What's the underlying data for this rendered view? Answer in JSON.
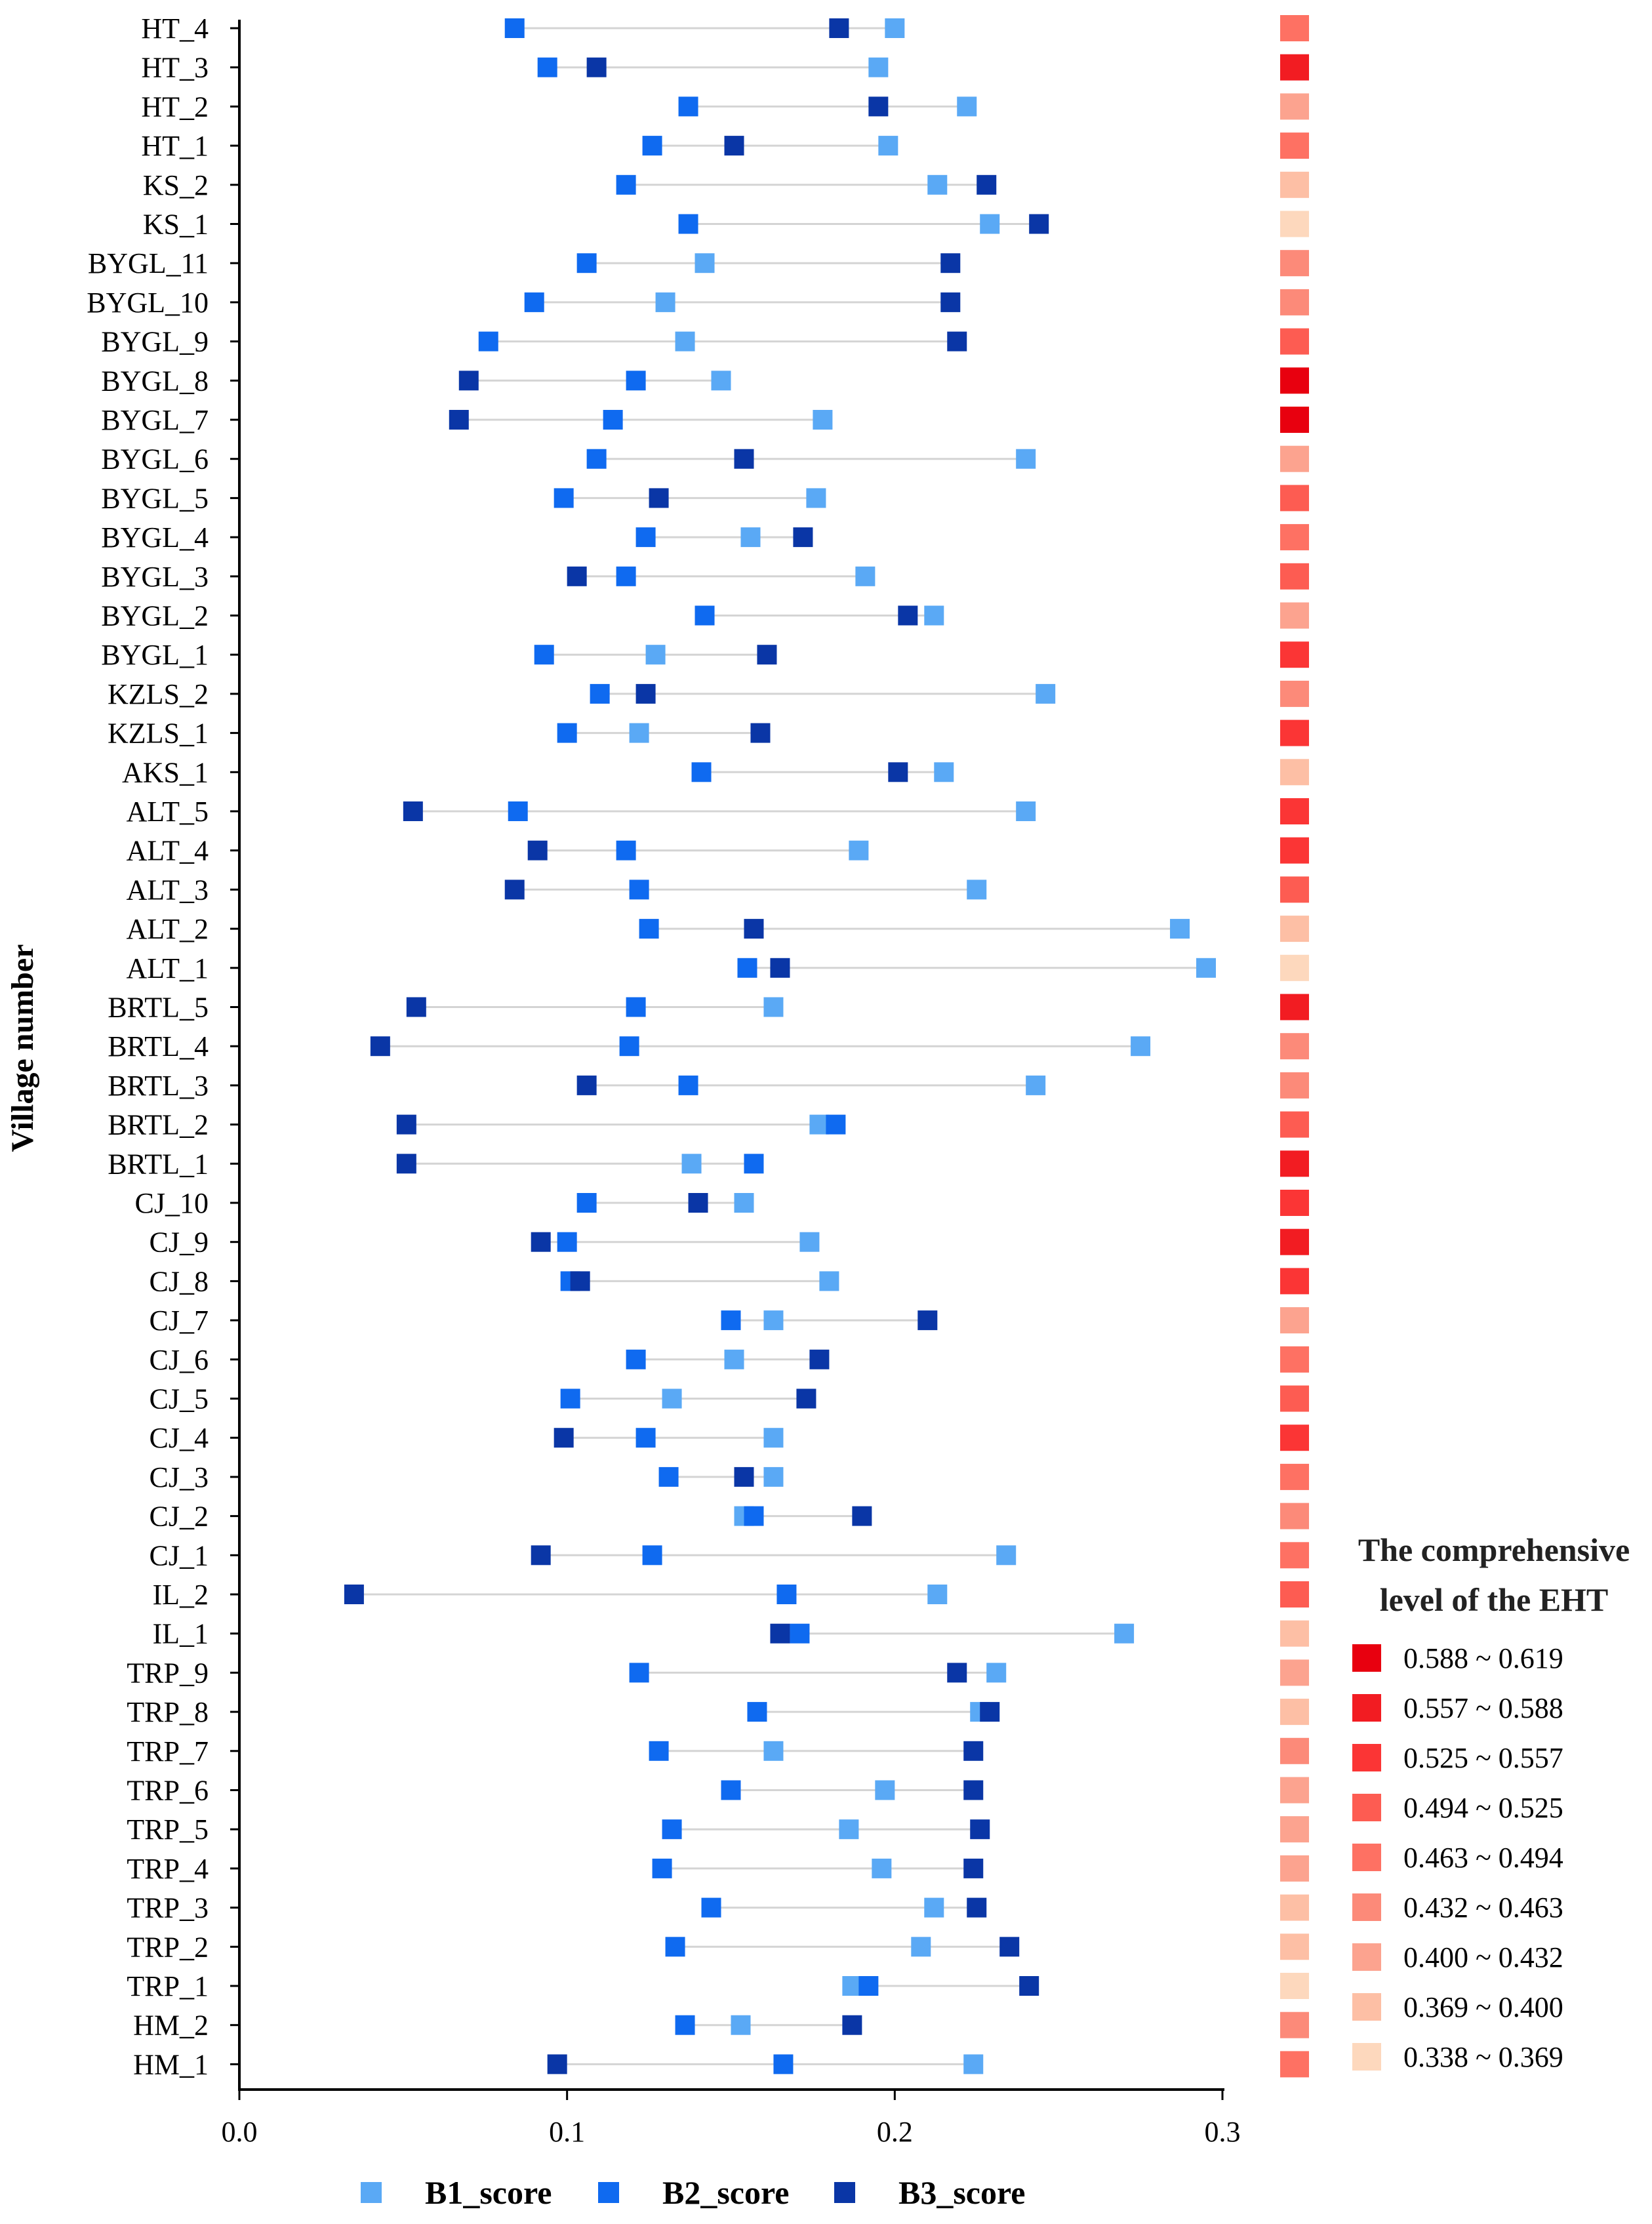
{
  "chart_data": {
    "type": "scatter",
    "subtype": "dumbbell",
    "title": "",
    "ylabel": "Village number",
    "xlabel": "",
    "xlim": [
      0.0,
      0.3
    ],
    "xticks": [
      "0.0",
      "0.1",
      "0.2",
      "0.3"
    ],
    "grid": false,
    "legend_position": "bottom",
    "categories": [
      "HT_4",
      "HT_3",
      "HT_2",
      "HT_1",
      "KS_2",
      "KS_1",
      "BYGL_11",
      "BYGL_10",
      "BYGL_9",
      "BYGL_8",
      "BYGL_7",
      "BYGL_6",
      "BYGL_5",
      "BYGL_4",
      "BYGL_3",
      "BYGL_2",
      "BYGL_1",
      "KZLS_2",
      "KZLS_1",
      "AKS_1",
      "ALT_5",
      "ALT_4",
      "ALT_3",
      "ALT_2",
      "ALT_1",
      "BRTL_5",
      "BRTL_4",
      "BRTL_3",
      "BRTL_2",
      "BRTL_1",
      "CJ_10",
      "CJ_9",
      "CJ_8",
      "CJ_7",
      "CJ_6",
      "CJ_5",
      "CJ_4",
      "CJ_3",
      "CJ_2",
      "CJ_1",
      "IL_2",
      "IL_1",
      "TRP_9",
      "TRP_8",
      "TRP_7",
      "TRP_6",
      "TRP_5",
      "TRP_4",
      "TRP_3",
      "TRP_2",
      "TRP_1",
      "HM_2",
      "HM_1"
    ],
    "series": [
      {
        "name": "B1_score",
        "color": "#5aa9f5",
        "values": [
          0.2,
          0.195,
          0.222,
          0.198,
          0.213,
          0.229,
          0.142,
          0.13,
          0.136,
          0.147,
          0.178,
          0.24,
          0.176,
          0.156,
          0.191,
          0.212,
          0.127,
          0.246,
          0.122,
          0.215,
          0.24,
          0.189,
          0.225,
          0.287,
          0.295,
          0.163,
          0.275,
          0.243,
          0.177,
          0.138,
          0.154,
          0.174,
          0.18,
          0.163,
          0.151,
          0.132,
          0.163,
          0.163,
          0.154,
          0.234,
          0.213,
          0.27,
          0.231,
          0.226,
          0.163,
          0.197,
          0.186,
          0.196,
          0.212,
          0.208,
          0.187,
          0.153,
          0.224
        ]
      },
      {
        "name": "B2_score",
        "color": "#0f6af0",
        "values": [
          0.084,
          0.094,
          0.137,
          0.126,
          0.118,
          0.137,
          0.106,
          0.09,
          0.076,
          0.121,
          0.114,
          0.109,
          0.099,
          0.124,
          0.118,
          0.142,
          0.093,
          0.11,
          0.1,
          0.141,
          0.085,
          0.118,
          0.122,
          0.125,
          0.155,
          0.121,
          0.119,
          0.137,
          0.182,
          0.157,
          0.106,
          0.1,
          0.101,
          0.15,
          0.121,
          0.101,
          0.124,
          0.131,
          0.157,
          0.126,
          0.167,
          0.171,
          0.122,
          0.158,
          0.128,
          0.15,
          0.132,
          0.129,
          0.144,
          0.133,
          0.192,
          0.136,
          0.166
        ]
      },
      {
        "name": "B3_score",
        "color": "#0a36a6",
        "values": [
          0.183,
          0.109,
          0.195,
          0.151,
          0.228,
          0.244,
          0.217,
          0.217,
          0.219,
          0.07,
          0.067,
          0.154,
          0.128,
          0.172,
          0.103,
          0.204,
          0.161,
          0.124,
          0.159,
          0.201,
          0.053,
          0.091,
          0.084,
          0.157,
          0.165,
          0.054,
          0.043,
          0.106,
          0.051,
          0.051,
          0.14,
          0.092,
          0.104,
          0.21,
          0.177,
          0.173,
          0.099,
          0.154,
          0.19,
          0.092,
          0.035,
          0.165,
          0.219,
          0.229,
          0.224,
          0.224,
          0.226,
          0.224,
          0.225,
          0.235,
          0.241,
          0.187,
          0.097
        ]
      }
    ],
    "eht_level_index": [
      4,
      1,
      6,
      4,
      7,
      8,
      5,
      5,
      3,
      0,
      0,
      6,
      3,
      4,
      3,
      6,
      2,
      5,
      2,
      7,
      2,
      2,
      3,
      7,
      8,
      1,
      5,
      5,
      3,
      1,
      2,
      1,
      2,
      6,
      4,
      3,
      2,
      4,
      5,
      4,
      3,
      7,
      6,
      7,
      5,
      6,
      6,
      6,
      7,
      7,
      8,
      5,
      4
    ],
    "eht_legend": {
      "title": [
        "The comprehensive",
        "level of the EHT"
      ],
      "items": [
        {
          "label": "0.588 ~ 0.619",
          "color": "#e8000f"
        },
        {
          "label": "0.557 ~ 0.588",
          "color": "#f21c22"
        },
        {
          "label": "0.525 ~ 0.557",
          "color": "#fb3535"
        },
        {
          "label": "0.494 ~ 0.525",
          "color": "#fd5c52"
        },
        {
          "label": "0.463 ~ 0.494",
          "color": "#fe7163"
        },
        {
          "label": "0.432 ~ 0.463",
          "color": "#fc8a79"
        },
        {
          "label": "0.400 ~ 0.432",
          "color": "#fca38f"
        },
        {
          "label": "0.369 ~ 0.400",
          "color": "#fdbfa5"
        },
        {
          "label": "0.338 ~ 0.369",
          "color": "#fdd8bd"
        }
      ]
    }
  }
}
